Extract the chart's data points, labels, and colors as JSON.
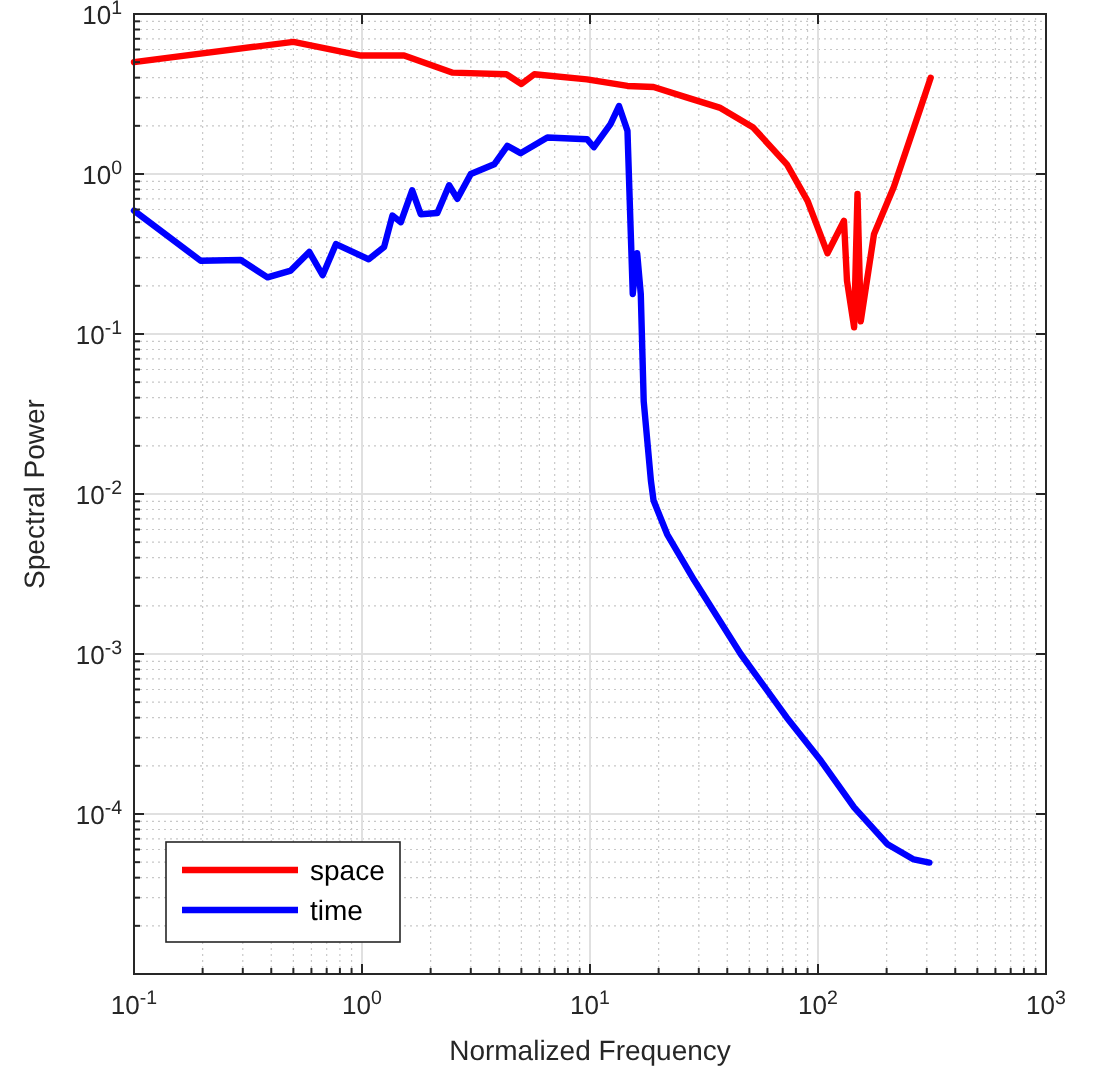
{
  "chart_data": {
    "type": "line",
    "xlabel": "Normalized Frequency",
    "ylabel": "Spectral Power",
    "log": "xy",
    "grid": true,
    "legend": "bottom left",
    "line_style": "solid",
    "xlim": [
      0.1,
      1000
    ],
    "ylim": [
      1e-05,
      10
    ],
    "xticks": [
      {
        "value": 0.1,
        "label": "10$^{-1}$"
      },
      {
        "value": 1,
        "label": "10$^{0}$"
      },
      {
        "value": 10,
        "label": "10$^{1}$"
      },
      {
        "value": 100,
        "label": "10$^{2}$"
      },
      {
        "value": 1000,
        "label": "10$^{3}$"
      }
    ],
    "yticks": [
      {
        "value": 1e-05,
        "label": null
      },
      {
        "value": 0.0001,
        "label": "10$^{-4}$"
      },
      {
        "value": 0.001,
        "label": "10$^{-3}$"
      },
      {
        "value": 0.01,
        "label": "10$^{-2}$"
      },
      {
        "value": 0.1,
        "label": "10$^{-1}$"
      },
      {
        "value": 1,
        "label": "10$^{0}$"
      },
      {
        "value": 10,
        "label": "10$^{1}$"
      }
    ],
    "series": [
      {
        "name": "space",
        "color": "#ff0000",
        "x": [
          0.1,
          0.5,
          0.99,
          1.53,
          2.5,
          4.3,
          5.0,
          5.7,
          9.7,
          14.6,
          19,
          26.7,
          37,
          52,
          73,
          90,
          110,
          130,
          134,
          144,
          149,
          154,
          176,
          215,
          282,
          312
        ],
        "values": [
          5.0,
          6.7,
          5.5,
          5.5,
          4.3,
          4.2,
          3.65,
          4.2,
          3.9,
          3.55,
          3.5,
          3.0,
          2.6,
          1.95,
          1.15,
          0.68,
          0.32,
          0.51,
          0.215,
          0.11,
          0.75,
          0.12,
          0.42,
          0.83,
          2.6,
          4.0
        ]
      },
      {
        "name": "time",
        "color": "#0000ff",
        "x": [
          0.1,
          0.196,
          0.294,
          0.385,
          0.487,
          0.587,
          0.672,
          0.769,
          1.07,
          1.25,
          1.36,
          1.48,
          1.66,
          1.81,
          2.14,
          2.41,
          2.62,
          3.0,
          3.8,
          4.34,
          4.96,
          6.5,
          9.7,
          10.4,
          12.3,
          13.4,
          14.6,
          15.1,
          15.4,
          16.1,
          16.7,
          17.2,
          18.5,
          19,
          21.8,
          28.6,
          45.8,
          73,
          103,
          144,
          201,
          263,
          308
        ],
        "values": [
          0.59,
          0.287,
          0.29,
          0.226,
          0.249,
          0.326,
          0.233,
          0.365,
          0.293,
          0.35,
          0.55,
          0.5,
          0.79,
          0.56,
          0.57,
          0.85,
          0.7,
          1.0,
          1.15,
          1.5,
          1.35,
          1.69,
          1.65,
          1.47,
          2.05,
          2.66,
          1.86,
          0.42,
          0.178,
          0.32,
          0.178,
          0.038,
          0.0121,
          0.0091,
          0.0056,
          0.0029,
          0.001,
          0.0004,
          0.000215,
          0.00011,
          6.5e-05,
          5.2e-05,
          4.97e-05
        ]
      }
    ]
  }
}
